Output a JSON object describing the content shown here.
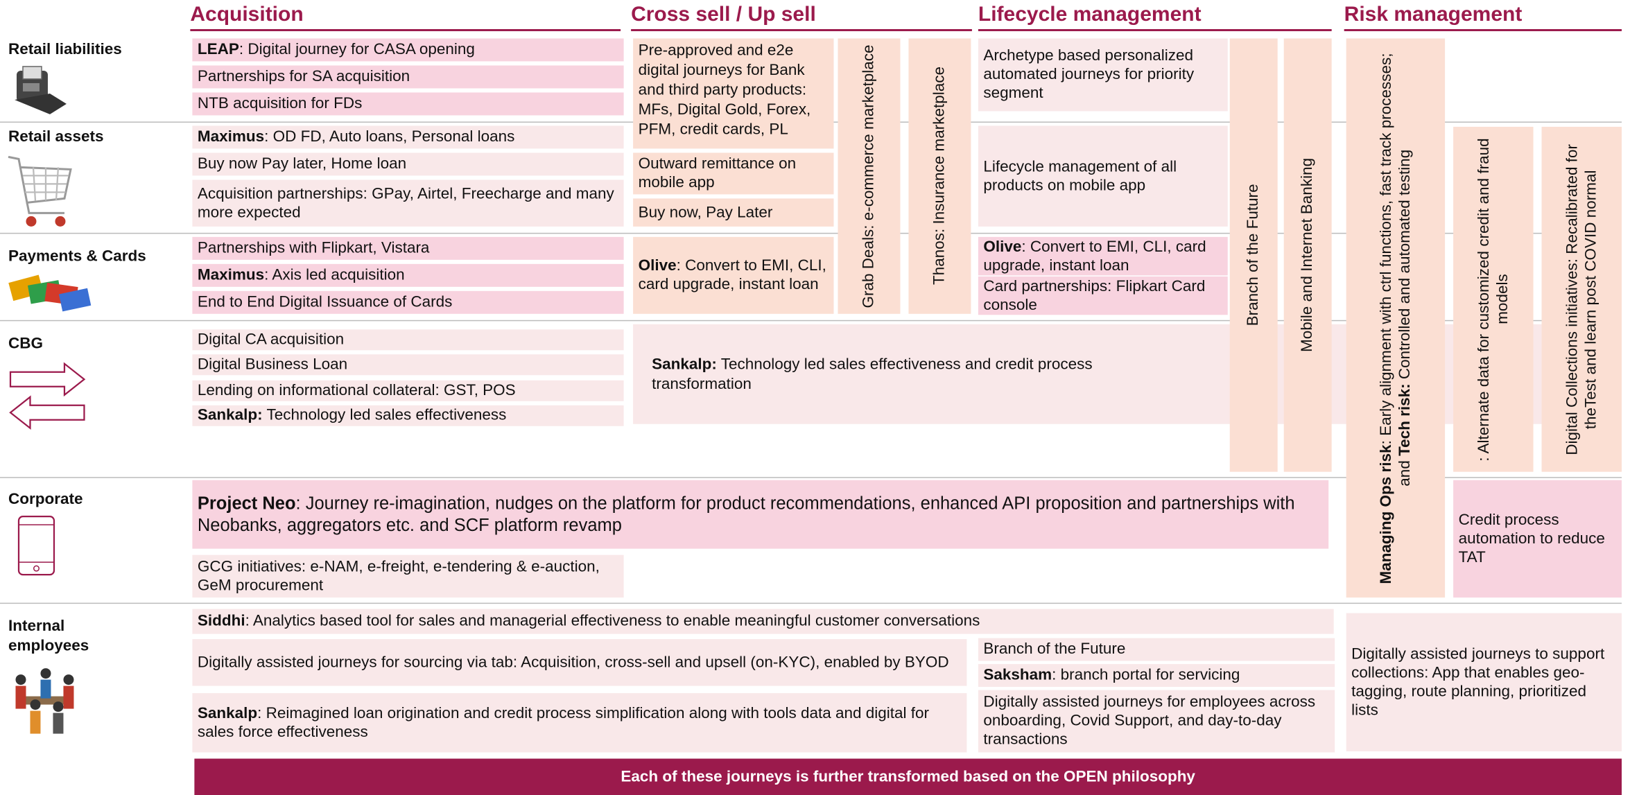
{
  "headers": [
    "Acquisition",
    "Cross sell / Up sell",
    "Lifecycle management",
    "Risk management"
  ],
  "rows": [
    "Retail liabilities",
    "Retail assets",
    "Payments & Cards",
    "CBG",
    "Corporate",
    "Internal employees"
  ],
  "boxes": [
    {
      "segments": [
        {
          "text": "LEAP",
          "bold": true
        },
        {
          "text": ": Digital journey for CASA opening"
        }
      ]
    },
    {
      "segments": [
        {
          "text": "Partnerships for SA acquisition"
        }
      ]
    },
    {
      "segments": [
        {
          "text": "NTB acquisition for FDs"
        }
      ]
    },
    {
      "segments": [
        {
          "text": "Maximus",
          "bold": true
        },
        {
          "text": ": OD FD, Auto loans, Personal loans"
        }
      ]
    },
    {
      "segments": [
        {
          "text": "Buy now Pay later, Home loan"
        }
      ]
    },
    {
      "segments": [
        {
          "text": "Acquisition partnerships: GPay, Airtel, Freecharge and many more expected"
        }
      ]
    },
    {
      "segments": [
        {
          "text": "Partnerships with Flipkart, Vistara"
        }
      ]
    },
    {
      "segments": [
        {
          "text": "Maximus",
          "bold": true
        },
        {
          "text": ": Axis led acquisition"
        }
      ]
    },
    {
      "segments": [
        {
          "text": "End to End Digital Issuance of Cards"
        }
      ]
    },
    {
      "segments": [
        {
          "text": "Digital CA acquisition"
        }
      ]
    },
    {
      "segments": [
        {
          "text": "Digital Business Loan"
        }
      ]
    },
    {
      "segments": [
        {
          "text": "Lending on informational collateral: GST, POS"
        }
      ]
    },
    {
      "segments": [
        {
          "text": "Sankalp:",
          "bold": true
        },
        {
          "text": " Technology led sales effectiveness"
        }
      ]
    },
    {
      "segments": [
        {
          "text": "Pre-approved and e2e digital journeys for Bank and third party products: MFs, Digital Gold, Forex, PFM, credit cards, PL"
        }
      ]
    },
    {
      "segments": [
        {
          "text": "Outward remittance on mobile app"
        }
      ]
    },
    {
      "segments": [
        {
          "text": "Buy now, Pay Later"
        }
      ]
    },
    {
      "segments": [
        {
          "text": "Olive",
          "bold": true
        },
        {
          "text": ": Convert to EMI, CLI, card upgrade, instant loan"
        }
      ]
    },
    {
      "segments": [
        {
          "text": "Sankalp:",
          "bold": true
        },
        {
          "text": " Technology led sales effectiveness and credit process transformation"
        }
      ]
    },
    {
      "segments": [
        {
          "text": "Grab Deals: e-commerce marketplace"
        }
      ]
    },
    {
      "segments": [
        {
          "text": "Thanos: Insurance marketplace"
        }
      ]
    },
    {
      "segments": [
        {
          "text": "Archetype based personalized automated journeys for priority segment"
        }
      ]
    },
    {
      "segments": [
        {
          "text": "Lifecycle management of all products on mobile app"
        }
      ]
    },
    {
      "segments": [
        {
          "text": "Olive",
          "bold": true
        },
        {
          "text": ": Convert to EMI, CLI, card upgrade, instant loan"
        }
      ]
    },
    {
      "segments": [
        {
          "text": "Card partnerships: Flipkart Card console"
        }
      ]
    },
    {
      "segments": [
        {
          "text": "Branch of the Future"
        }
      ]
    },
    {
      "segments": [
        {
          "text": "Mobile and Internet Banking"
        }
      ]
    },
    {
      "segments": [
        {
          "text": "Managing Ops risk",
          "bold": true
        },
        {
          "text": ": Early alignment with ctrl functions, fast track processes; and "
        },
        {
          "text": "Tech risk:",
          "bold": true
        },
        {
          "text": " Controlled and automated testing"
        }
      ]
    },
    {
      "segments": [
        {
          "text": ": Alternate data for customized credit and fraud models"
        }
      ]
    },
    {
      "segments": [
        {
          "text": "Digital Collections initiatives: Recalibrated for theTest and learn post COVID normal"
        }
      ]
    },
    {
      "segments": [
        {
          "text": "Project Neo",
          "bold": true
        },
        {
          "text": ": Journey re-imagination, nudges on the platform for product recommendations, enhanced API proposition and partnerships with Neobanks, aggregators etc. and SCF platform revamp"
        }
      ]
    },
    {
      "segments": [
        {
          "text": "GCG initiatives: e-NAM, e-freight, e-tendering & e-auction, GeM procurement"
        }
      ]
    },
    {
      "segments": [
        {
          "text": "Credit process automation to reduce TAT"
        }
      ]
    },
    {
      "segments": [
        {
          "text": "Siddhi",
          "bold": true
        },
        {
          "text": ": Analytics based tool for sales and managerial effectiveness to enable meaningful customer conversations"
        }
      ]
    },
    {
      "segments": [
        {
          "text": "Digitally assisted journeys for sourcing via tab: Acquisition, cross-sell and upsell (on-KYC), enabled by BYOD"
        }
      ]
    },
    {
      "segments": [
        {
          "text": "Sankalp",
          "bold": true
        },
        {
          "text": ": Reimagined loan origination and credit process simplification along with tools data and digital for sales force effectiveness"
        }
      ]
    },
    {
      "segments": [
        {
          "text": "Branch of the Future"
        }
      ]
    },
    {
      "segments": [
        {
          "text": "Saksham",
          "bold": true
        },
        {
          "text": ": branch portal for servicing"
        }
      ]
    },
    {
      "segments": [
        {
          "text": "Digitally assisted journeys for employees across onboarding, Covid Support, and day-to-day transactions"
        }
      ]
    },
    {
      "segments": [
        {
          "text": "Digitally assisted journeys to support collections: App that enables geo-tagging, route planning, prioritized lists"
        }
      ]
    }
  ],
  "footer": "Each of these journeys is further transformed based on the OPEN philosophy"
}
